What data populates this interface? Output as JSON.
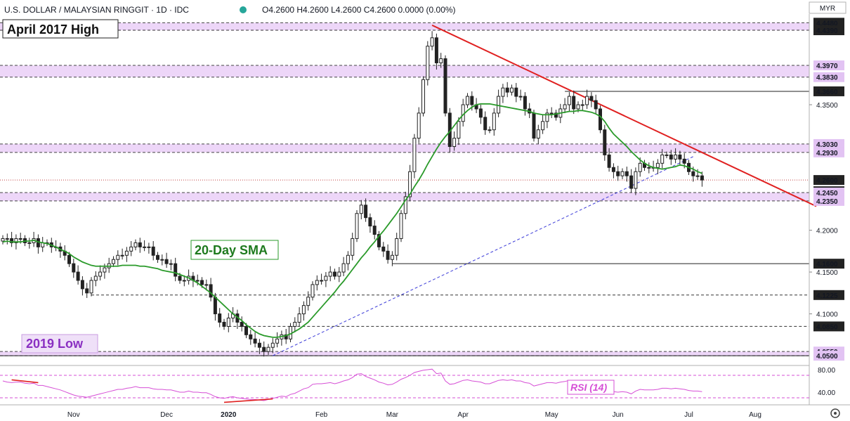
{
  "header": {
    "symbol": "U.S. DOLLAR / MALAYSIAN RINGGIT · 1D · IDC",
    "ohlc": "O4.2600  H4.2600  L4.2600  C4.2600  0.0000 (0.00%)",
    "currency": "MYR"
  },
  "annotations": {
    "april_high": "April 2017 High",
    "sma_label": "20-Day SMA",
    "low_2019": "2019 Low",
    "rsi_label": "RSI (14)"
  },
  "colors": {
    "candle": "#222222",
    "sma": "#2a9a2a",
    "trendline": "#e02020",
    "support_line": "#3b3bd8",
    "zone": "#e7c8f5",
    "rsi": "#d64fd6",
    "divergence": "#e02020"
  },
  "chart_data": {
    "type": "candlestick",
    "y_range": [
      4.04,
      4.455
    ],
    "price_labels": [
      {
        "label": "4.4480",
        "value": 4.448,
        "style": "dark"
      },
      {
        "label": "4.4390",
        "value": 4.439,
        "style": "dark"
      },
      {
        "label": "4.3970",
        "value": 4.397,
        "style": "purple"
      },
      {
        "label": "4.3830",
        "value": 4.383,
        "style": "purple"
      },
      {
        "label": "4.3660",
        "value": 4.366,
        "style": "dark"
      },
      {
        "label": "4.3500",
        "value": 4.35,
        "style": "plain"
      },
      {
        "label": "4.3030",
        "value": 4.303,
        "style": "purple"
      },
      {
        "label": "4.2930",
        "value": 4.293,
        "style": "purple"
      },
      {
        "label": "4.2600",
        "value": 4.26,
        "style": "dark"
      },
      {
        "label": "4.2600",
        "value": 4.26,
        "style": "dark"
      },
      {
        "label": "4.2450",
        "value": 4.245,
        "style": "purple"
      },
      {
        "label": "4.2350",
        "value": 4.235,
        "style": "purple"
      },
      {
        "label": "4.2000",
        "value": 4.2,
        "style": "plain"
      },
      {
        "label": "4.1600",
        "value": 4.16,
        "style": "dark"
      },
      {
        "label": "4.1500",
        "value": 4.15,
        "style": "plain"
      },
      {
        "label": "4.1225",
        "value": 4.1225,
        "style": "dark"
      },
      {
        "label": "4.1000",
        "value": 4.1,
        "style": "plain"
      },
      {
        "label": "4.0850",
        "value": 4.085,
        "style": "dark"
      },
      {
        "label": "4.0550",
        "value": 4.055,
        "style": "purple"
      },
      {
        "label": "4.0500",
        "value": 4.05,
        "style": "purple"
      }
    ],
    "x_labels": [
      "Nov",
      "Dec",
      "2020",
      "Feb",
      "Mar",
      "Apr",
      "May",
      "Jun",
      "Jul",
      "Aug"
    ],
    "rsi_labels": [
      "80.00",
      "40.00"
    ],
    "rsi_range": [
      20,
      85
    ],
    "zones": [
      {
        "low": 4.439,
        "high": 4.448
      },
      {
        "low": 4.383,
        "high": 4.397
      },
      {
        "low": 4.293,
        "high": 4.303
      },
      {
        "low": 4.235,
        "high": 4.245
      },
      {
        "low": 4.05,
        "high": 4.055
      }
    ],
    "close": [
      4.19,
      4.19,
      4.185,
      4.19,
      4.19,
      4.185,
      4.185,
      4.19,
      4.18,
      4.185,
      4.185,
      4.18,
      4.18,
      4.175,
      4.17,
      4.16,
      4.15,
      4.14,
      4.13,
      4.125,
      4.14,
      4.145,
      4.15,
      4.155,
      4.16,
      4.165,
      4.17,
      4.17,
      4.175,
      4.18,
      4.185,
      4.18,
      4.18,
      4.18,
      4.17,
      4.165,
      4.165,
      4.16,
      4.16,
      4.145,
      4.14,
      4.14,
      4.145,
      4.14,
      4.14,
      4.135,
      4.135,
      4.12,
      4.1,
      4.09,
      4.085,
      4.095,
      4.1,
      4.09,
      4.085,
      4.075,
      4.07,
      4.065,
      4.06,
      4.055,
      4.06,
      4.065,
      4.07,
      4.075,
      4.07,
      4.085,
      4.09,
      4.1,
      4.11,
      4.12,
      4.135,
      4.14,
      4.14,
      4.145,
      4.15,
      4.145,
      4.15,
      4.16,
      4.17,
      4.19,
      4.22,
      4.23,
      4.215,
      4.205,
      4.195,
      4.18,
      4.175,
      4.165,
      4.17,
      4.19,
      4.22,
      4.24,
      4.27,
      4.31,
      4.34,
      4.38,
      4.42,
      4.43,
      4.4,
      4.405,
      4.34,
      4.3,
      4.31,
      4.33,
      4.35,
      4.36,
      4.35,
      4.345,
      4.335,
      4.32,
      4.32,
      4.34,
      4.36,
      4.37,
      4.365,
      4.37,
      4.36,
      4.36,
      4.345,
      4.34,
      4.31,
      4.32,
      4.33,
      4.34,
      4.34,
      4.335,
      4.345,
      4.35,
      4.36,
      4.345,
      4.35,
      4.35,
      4.36,
      4.355,
      4.345,
      4.32,
      4.29,
      4.275,
      4.27,
      4.265,
      4.27,
      4.265,
      4.25,
      4.27,
      4.28,
      4.275,
      4.275,
      4.275,
      4.28,
      4.29,
      4.29,
      4.285,
      4.29,
      4.285,
      4.28,
      4.27,
      4.265,
      4.265,
      4.26
    ],
    "sma": [
      4.186,
      4.187,
      4.186,
      4.186,
      4.186,
      4.187,
      4.187,
      4.188,
      4.186,
      4.185,
      4.184,
      4.182,
      4.18,
      4.177,
      4.175,
      4.172,
      4.168,
      4.165,
      4.162,
      4.16,
      4.158,
      4.157,
      4.157,
      4.157,
      4.157,
      4.157,
      4.157,
      4.158,
      4.158,
      4.158,
      4.158,
      4.157,
      4.157,
      4.156,
      4.155,
      4.154,
      4.152,
      4.151,
      4.15,
      4.149,
      4.147,
      4.145,
      4.143,
      4.14,
      4.137,
      4.133,
      4.129,
      4.125,
      4.12,
      4.115,
      4.11,
      4.105,
      4.1,
      4.096,
      4.092,
      4.087,
      4.083,
      4.079,
      4.076,
      4.074,
      4.073,
      4.072,
      4.072,
      4.073,
      4.074,
      4.076,
      4.079,
      4.082,
      4.086,
      4.09,
      4.096,
      4.102,
      4.108,
      4.114,
      4.12,
      4.126,
      4.133,
      4.139,
      4.146,
      4.153,
      4.16,
      4.167,
      4.173,
      4.18,
      4.186,
      4.193,
      4.199,
      4.206,
      4.213,
      4.22,
      4.228,
      4.236,
      4.243,
      4.252,
      4.26,
      4.269,
      4.279,
      4.288,
      4.297,
      4.305,
      4.312,
      4.318,
      4.325,
      4.332,
      4.338,
      4.343,
      4.347,
      4.35,
      4.351,
      4.351,
      4.351,
      4.35,
      4.349,
      4.348,
      4.347,
      4.346,
      4.345,
      4.344,
      4.343,
      4.342,
      4.34,
      4.339,
      4.338,
      4.338,
      4.338,
      4.339,
      4.34,
      4.341,
      4.342,
      4.342,
      4.343,
      4.343,
      4.342,
      4.341,
      4.339,
      4.336,
      4.33,
      4.322,
      4.315,
      4.31,
      4.305,
      4.3,
      4.294,
      4.289,
      4.284,
      4.28,
      4.277,
      4.275,
      4.274,
      4.273,
      4.274,
      4.275,
      4.276,
      4.278,
      4.277,
      4.275,
      4.273,
      4.27,
      4.268
    ],
    "rsi": [
      60,
      58,
      57,
      58,
      58,
      56,
      55,
      56,
      52,
      52,
      50,
      48,
      46,
      44,
      41,
      38,
      35,
      33,
      32,
      31,
      33,
      35,
      37,
      39,
      41,
      43,
      45,
      45,
      47,
      48,
      50,
      48,
      48,
      48,
      46,
      45,
      45,
      44,
      44,
      42,
      40,
      40,
      42,
      40,
      40,
      39,
      39,
      36,
      32,
      30,
      29,
      31,
      32,
      30,
      29,
      28,
      27,
      27,
      26,
      25,
      27,
      29,
      31,
      33,
      32,
      36,
      38,
      42,
      46,
      48,
      54,
      55,
      55,
      56,
      57,
      55,
      57,
      60,
      62,
      66,
      72,
      73,
      68,
      65,
      62,
      58,
      56,
      53,
      54,
      58,
      63,
      66,
      70,
      75,
      77,
      79,
      80,
      81,
      73,
      74,
      60,
      54,
      55,
      58,
      61,
      62,
      60,
      59,
      58,
      55,
      55,
      58,
      61,
      62,
      61,
      62,
      60,
      60,
      57,
      56,
      51,
      53,
      55,
      57,
      57,
      56,
      58,
      59,
      61,
      57,
      58,
      58,
      60,
      59,
      56,
      51,
      45,
      42,
      41,
      40,
      41,
      40,
      37,
      42,
      45,
      44,
      44,
      44,
      45,
      47,
      47,
      46,
      47,
      46,
      45,
      43,
      42,
      42,
      41
    ],
    "horizontal_lines": [
      {
        "value": 4.439,
        "style": "dashed",
        "x_start_index": -1
      },
      {
        "value": 4.366,
        "style": "solid",
        "x_start_index": 127
      },
      {
        "value": 4.26,
        "style": "dotted-red",
        "x_start_index": -1
      },
      {
        "value": 4.16,
        "style": "solid",
        "x_start_index": 88
      },
      {
        "value": 4.1225,
        "style": "dashed",
        "x_start_index": 20
      },
      {
        "value": 4.085,
        "style": "dashed",
        "x_start_index": 51
      },
      {
        "value": 4.05,
        "style": "solid",
        "x_start_index": -1
      }
    ],
    "trendline_resistance": {
      "from": {
        "index": 97,
        "value": 4.445
      },
      "to": {
        "index": 168,
        "value": 4.268
      }
    },
    "trendline_support": {
      "from": {
        "index": 61,
        "value": 4.05
      },
      "to": {
        "index": 156,
        "value": 4.288
      }
    },
    "rsi_divergence": [
      {
        "from": {
          "index": 2,
          "value": 62
        },
        "to": {
          "index": 8,
          "value": 57
        }
      },
      {
        "from": {
          "index": 50,
          "value": 22
        },
        "to": {
          "index": 61,
          "value": 28
        }
      }
    ]
  }
}
